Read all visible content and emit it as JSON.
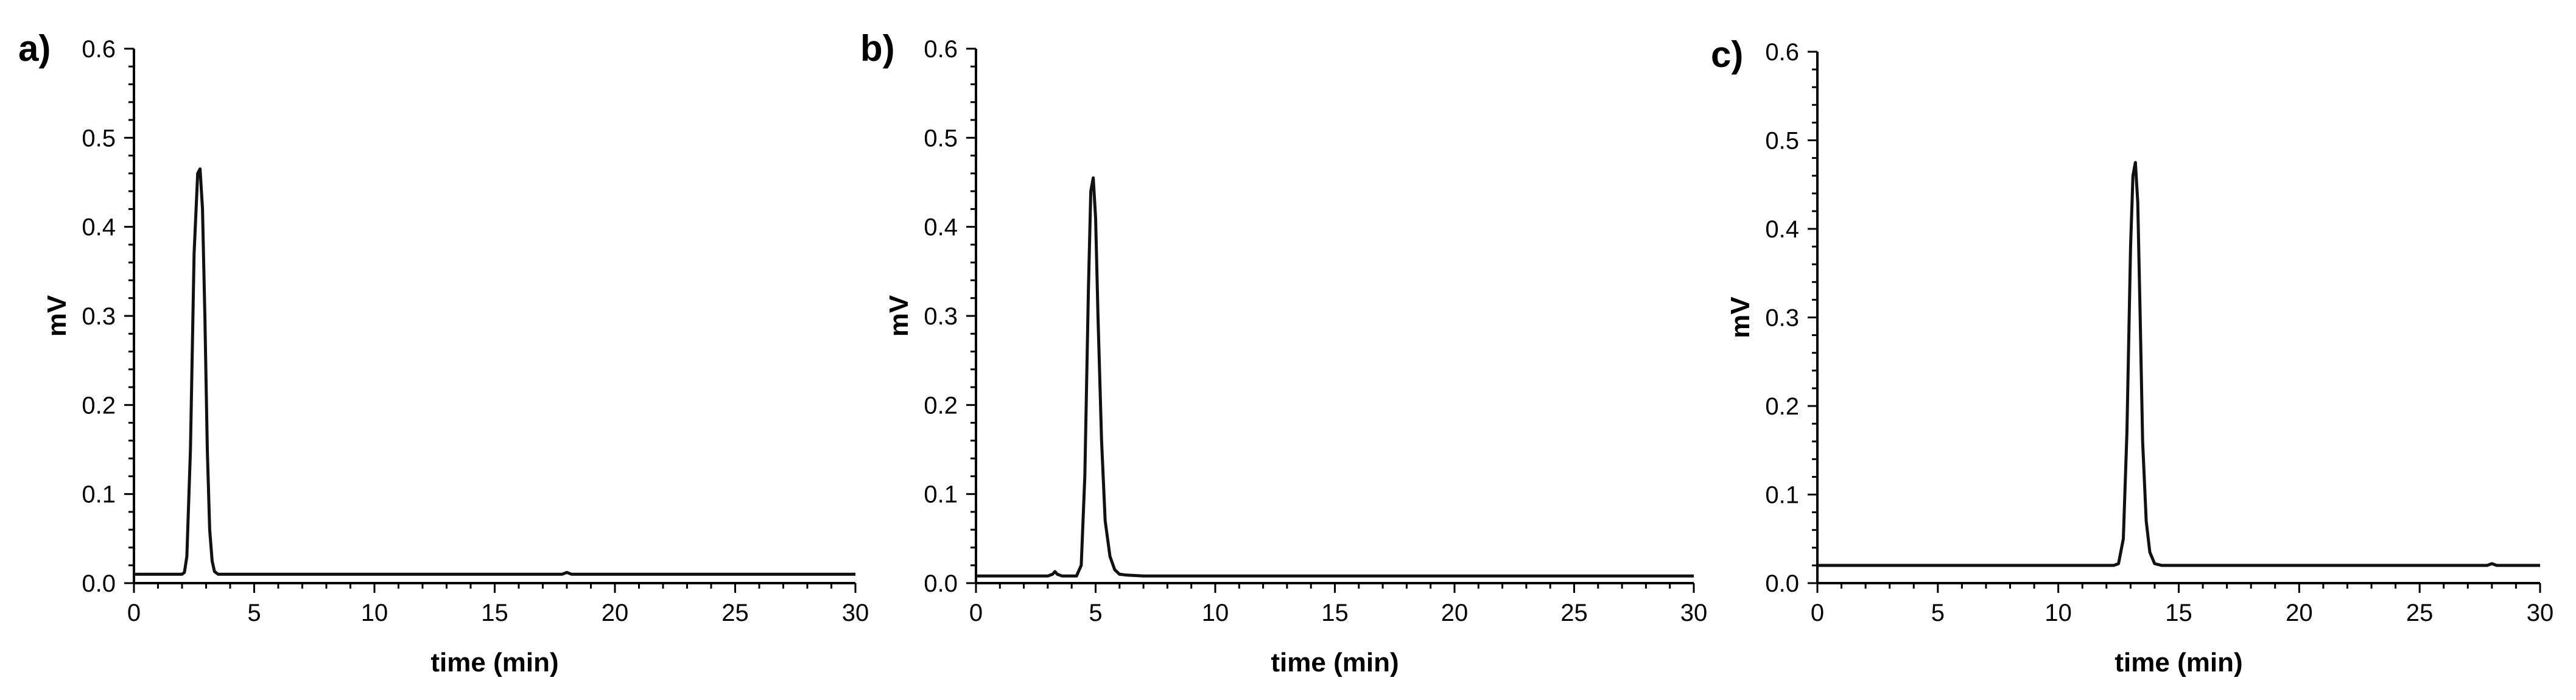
{
  "chart_data": [
    {
      "type": "line",
      "panel_label": "a)",
      "xlabel": "time (min)",
      "ylabel": "mV",
      "xlim": [
        0,
        30
      ],
      "ylim": [
        0,
        0.6
      ],
      "xticks": [
        "0",
        "5",
        "10",
        "15",
        "20",
        "25",
        "30"
      ],
      "yticks": [
        "0.0",
        "0.1",
        "0.2",
        "0.3",
        "0.4",
        "0.5",
        "0.6"
      ],
      "series": [
        {
          "x": [
            0,
            2.0,
            2.1,
            2.2,
            2.35,
            2.5,
            2.65,
            2.75,
            2.85,
            2.95,
            3.05,
            3.15,
            3.25,
            3.35,
            3.5,
            3.7,
            4.0,
            10,
            17.8,
            18.0,
            18.2,
            30
          ],
          "y": [
            0.01,
            0.01,
            0.012,
            0.03,
            0.15,
            0.37,
            0.46,
            0.465,
            0.42,
            0.3,
            0.15,
            0.06,
            0.025,
            0.013,
            0.01,
            0.01,
            0.01,
            0.01,
            0.01,
            0.012,
            0.01,
            0.01
          ]
        }
      ]
    },
    {
      "type": "line",
      "panel_label": "b)",
      "xlabel": "time (min)",
      "ylabel": "mV",
      "xlim": [
        0,
        30
      ],
      "ylim": [
        0,
        0.6
      ],
      "xticks": [
        "0",
        "5",
        "10",
        "15",
        "20",
        "25",
        "30"
      ],
      "yticks": [
        "0.0",
        "0.1",
        "0.2",
        "0.3",
        "0.4",
        "0.5",
        "0.6"
      ],
      "series": [
        {
          "x": [
            0,
            3.0,
            3.2,
            3.3,
            3.4,
            3.6,
            4.2,
            4.4,
            4.55,
            4.7,
            4.8,
            4.9,
            5.0,
            5.1,
            5.25,
            5.4,
            5.6,
            5.8,
            6.0,
            6.3,
            7,
            10,
            15,
            20,
            25,
            30
          ],
          "y": [
            0.008,
            0.008,
            0.01,
            0.013,
            0.01,
            0.008,
            0.008,
            0.02,
            0.12,
            0.33,
            0.44,
            0.455,
            0.41,
            0.3,
            0.16,
            0.07,
            0.03,
            0.015,
            0.01,
            0.009,
            0.008,
            0.008,
            0.008,
            0.008,
            0.008,
            0.008
          ]
        }
      ]
    },
    {
      "type": "line",
      "panel_label": "c)",
      "xlabel": "time (min)",
      "ylabel": "mV",
      "xlim": [
        0,
        30
      ],
      "ylim": [
        0,
        0.6
      ],
      "xticks": [
        "0",
        "5",
        "10",
        "15",
        "20",
        "25",
        "30"
      ],
      "yticks": [
        "0.0",
        "0.1",
        "0.2",
        "0.3",
        "0.4",
        "0.5",
        "0.6"
      ],
      "series": [
        {
          "x": [
            0,
            12.3,
            12.5,
            12.7,
            12.85,
            13.0,
            13.1,
            13.2,
            13.3,
            13.4,
            13.5,
            13.65,
            13.8,
            14.0,
            14.3,
            20,
            27.8,
            28.0,
            28.2,
            30
          ],
          "y": [
            0.02,
            0.02,
            0.022,
            0.05,
            0.17,
            0.38,
            0.46,
            0.475,
            0.43,
            0.3,
            0.16,
            0.07,
            0.035,
            0.022,
            0.02,
            0.02,
            0.02,
            0.022,
            0.02,
            0.02
          ]
        }
      ]
    }
  ]
}
